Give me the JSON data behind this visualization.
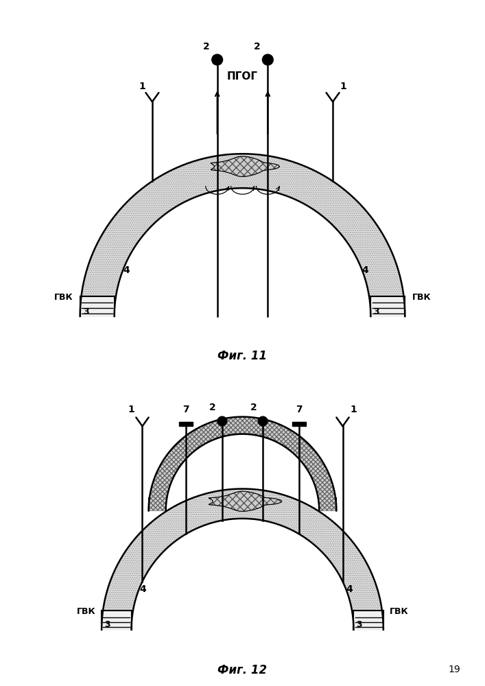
{
  "fig_width": 7.07,
  "fig_height": 10.0,
  "bg_color": "#ffffff",
  "fig11_caption": "Фиг. 11",
  "fig12_caption": "Фиг. 12",
  "pgog_label": "ПГОГ",
  "gvk_label": "ГВК",
  "label1": "1",
  "label2": "2",
  "label3": "3",
  "label4": "4",
  "label7": "7",
  "page_number": "19"
}
